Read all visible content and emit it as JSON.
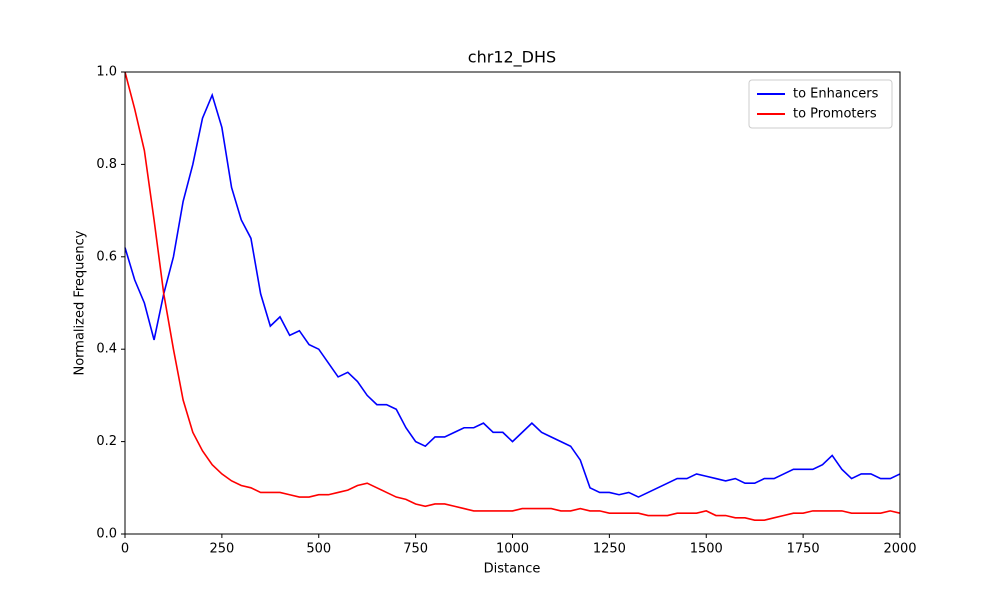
{
  "chart_data": {
    "type": "line",
    "title": "chr12_DHS",
    "xlabel": "Distance",
    "ylabel": "Normalized Frequency",
    "x": [
      0,
      25,
      50,
      75,
      100,
      125,
      150,
      175,
      200,
      225,
      250,
      275,
      300,
      325,
      350,
      375,
      400,
      425,
      450,
      475,
      500,
      525,
      550,
      575,
      600,
      625,
      650,
      675,
      700,
      725,
      750,
      775,
      800,
      825,
      850,
      875,
      900,
      925,
      950,
      975,
      1000,
      1025,
      1050,
      1075,
      1100,
      1125,
      1150,
      1175,
      1200,
      1225,
      1250,
      1275,
      1300,
      1325,
      1350,
      1375,
      1400,
      1425,
      1450,
      1475,
      1500,
      1525,
      1550,
      1575,
      1600,
      1625,
      1650,
      1675,
      1700,
      1725,
      1750,
      1775,
      1800,
      1825,
      1850,
      1875,
      1900,
      1925,
      1950,
      1975,
      2000
    ],
    "series": [
      {
        "name": "to Enhancers",
        "color": "#0000ff",
        "values": [
          0.62,
          0.55,
          0.5,
          0.42,
          0.52,
          0.6,
          0.72,
          0.8,
          0.9,
          0.95,
          0.88,
          0.75,
          0.68,
          0.64,
          0.52,
          0.45,
          0.47,
          0.43,
          0.44,
          0.41,
          0.4,
          0.37,
          0.34,
          0.35,
          0.33,
          0.3,
          0.28,
          0.28,
          0.27,
          0.23,
          0.2,
          0.19,
          0.21,
          0.21,
          0.22,
          0.23,
          0.23,
          0.24,
          0.22,
          0.22,
          0.2,
          0.22,
          0.24,
          0.22,
          0.21,
          0.2,
          0.19,
          0.16,
          0.1,
          0.09,
          0.09,
          0.085,
          0.09,
          0.08,
          0.09,
          0.1,
          0.11,
          0.12,
          0.12,
          0.13,
          0.125,
          0.12,
          0.115,
          0.12,
          0.11,
          0.11,
          0.12,
          0.12,
          0.13,
          0.14,
          0.14,
          0.14,
          0.15,
          0.17,
          0.14,
          0.12,
          0.13,
          0.13,
          0.12,
          0.12,
          0.13
        ]
      },
      {
        "name": "to Promoters",
        "color": "#ff0000",
        "values": [
          1.0,
          0.92,
          0.83,
          0.68,
          0.52,
          0.4,
          0.29,
          0.22,
          0.18,
          0.15,
          0.13,
          0.115,
          0.105,
          0.1,
          0.09,
          0.09,
          0.09,
          0.085,
          0.08,
          0.08,
          0.085,
          0.085,
          0.09,
          0.095,
          0.105,
          0.11,
          0.1,
          0.09,
          0.08,
          0.075,
          0.065,
          0.06,
          0.065,
          0.065,
          0.06,
          0.055,
          0.05,
          0.05,
          0.05,
          0.05,
          0.05,
          0.055,
          0.055,
          0.055,
          0.055,
          0.05,
          0.05,
          0.055,
          0.05,
          0.05,
          0.045,
          0.045,
          0.045,
          0.045,
          0.04,
          0.04,
          0.04,
          0.045,
          0.045,
          0.045,
          0.05,
          0.04,
          0.04,
          0.035,
          0.035,
          0.03,
          0.03,
          0.035,
          0.04,
          0.045,
          0.045,
          0.05,
          0.05,
          0.05,
          0.05,
          0.045,
          0.045,
          0.045,
          0.045,
          0.05,
          0.045
        ]
      }
    ],
    "xlim": [
      0,
      2000
    ],
    "ylim": [
      0,
      1
    ],
    "xticks": [
      0,
      250,
      500,
      750,
      1000,
      1250,
      1500,
      1750,
      2000
    ],
    "yticks": [
      {
        "value": 0,
        "label": "0.0"
      },
      {
        "value": 0.2,
        "label": "0.2"
      },
      {
        "value": 0.4,
        "label": "0.4"
      },
      {
        "value": 0.6,
        "label": "0.6"
      },
      {
        "value": 0.8,
        "label": "0.8"
      },
      {
        "value": 1,
        "label": "1.0"
      }
    ],
    "legend": "upper right",
    "grid": false
  }
}
